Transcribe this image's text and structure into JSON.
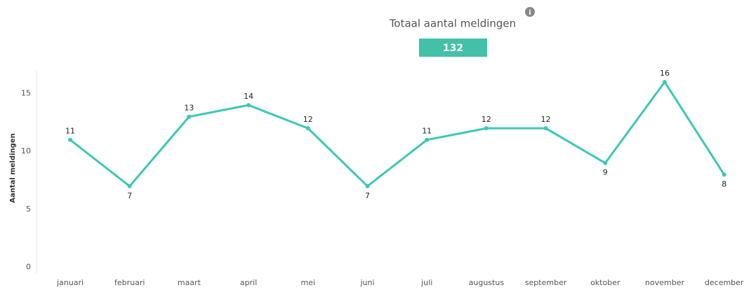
{
  "kpi": {
    "title": "Totaal aantal meldingen",
    "value": 132
  },
  "chart_data": {
    "type": "line",
    "y_label": "Aantal meldingen",
    "categories": [
      "januari",
      "februari",
      "maart",
      "april",
      "mei",
      "juni",
      "juli",
      "augustus",
      "september",
      "oktober",
      "november",
      "december"
    ],
    "values": [
      11,
      7,
      13,
      14,
      12,
      7,
      11,
      12,
      12,
      9,
      16,
      8
    ],
    "color": "#3cc8b4",
    "ylim": [
      0,
      17
    ],
    "yticks": [
      0,
      5,
      10,
      15
    ],
    "grid": false
  }
}
